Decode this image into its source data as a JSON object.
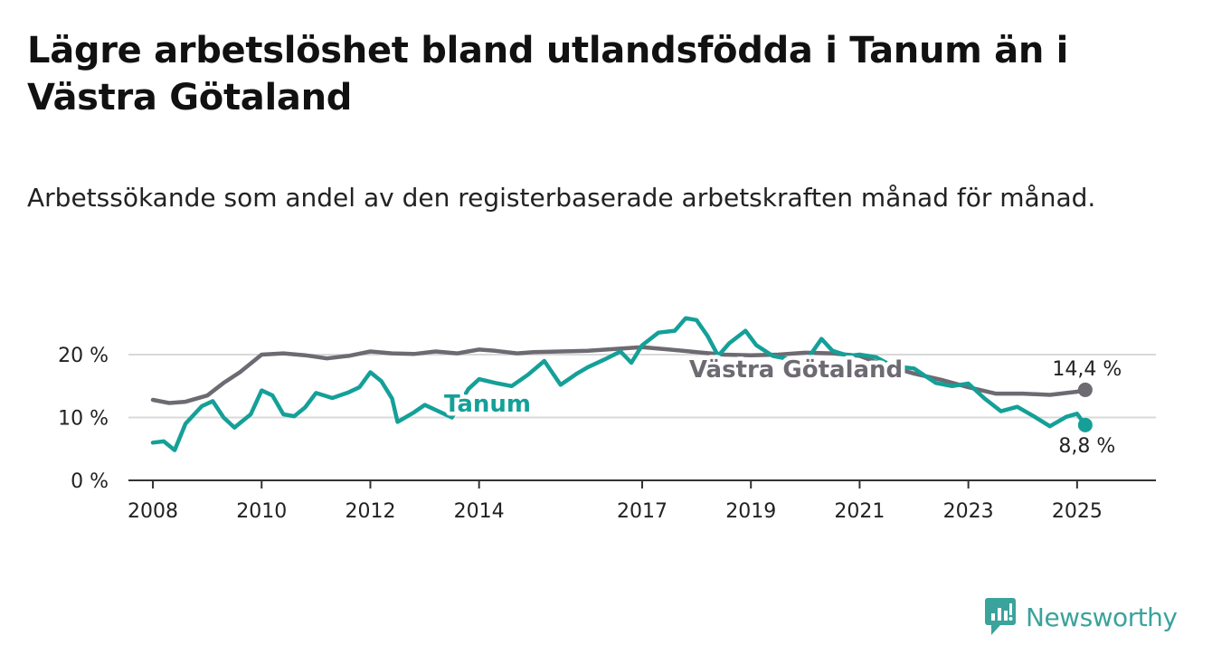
{
  "title": "Lägre arbetslöshet bland utlandsfödda i Tanum än i Västra Götaland",
  "subtitle": "Arbetssökande som andel av den registerbaserade arbetskraften månad för månad.",
  "brand": {
    "name": "Newsworthy",
    "icon": "newsworthy-logo-icon",
    "color": "#3aa39c"
  },
  "chart_data": {
    "type": "line",
    "x_ticks": [
      "2008",
      "2010",
      "2012",
      "2014",
      "2017",
      "2019",
      "2021",
      "2023",
      "2025"
    ],
    "y_ticks": [
      "0 %",
      "10 %",
      "20 %"
    ],
    "ylim": [
      0,
      20
    ],
    "grid": true,
    "series": [
      {
        "name": "Västra Götaland",
        "color": "#6e6a72",
        "end_label": "14,4 %",
        "points": [
          [
            2008.0,
            12.8
          ],
          [
            2008.3,
            12.3
          ],
          [
            2008.6,
            12.5
          ],
          [
            2009.0,
            13.5
          ],
          [
            2009.3,
            15.5
          ],
          [
            2009.6,
            17.2
          ],
          [
            2010.0,
            20.0
          ],
          [
            2010.4,
            20.2
          ],
          [
            2010.8,
            19.9
          ],
          [
            2011.2,
            19.4
          ],
          [
            2011.6,
            19.8
          ],
          [
            2012.0,
            20.5
          ],
          [
            2012.4,
            20.2
          ],
          [
            2012.8,
            20.1
          ],
          [
            2013.2,
            20.5
          ],
          [
            2013.6,
            20.2
          ],
          [
            2014.0,
            20.8
          ],
          [
            2014.3,
            20.6
          ],
          [
            2014.7,
            20.2
          ],
          [
            2015.0,
            20.4
          ],
          [
            2015.5,
            20.5
          ],
          [
            2016.0,
            20.6
          ],
          [
            2016.5,
            20.9
          ],
          [
            2017.0,
            21.2
          ],
          [
            2017.5,
            20.8
          ],
          [
            2018.0,
            20.4
          ],
          [
            2018.5,
            20.0
          ],
          [
            2019.0,
            19.9
          ],
          [
            2019.5,
            20.0
          ],
          [
            2020.0,
            20.3
          ],
          [
            2020.5,
            20.2
          ],
          [
            2021.0,
            19.8
          ],
          [
            2021.5,
            18.2
          ],
          [
            2022.0,
            17.0
          ],
          [
            2022.5,
            16.0
          ],
          [
            2023.0,
            14.8
          ],
          [
            2023.5,
            13.8
          ],
          [
            2024.0,
            13.8
          ],
          [
            2024.5,
            13.6
          ],
          [
            2025.0,
            14.1
          ],
          [
            2025.15,
            14.4
          ]
        ]
      },
      {
        "name": "Tanum",
        "color": "#14a098",
        "end_label": "8,8 %",
        "points": [
          [
            2008.0,
            6.0
          ],
          [
            2008.2,
            6.2
          ],
          [
            2008.4,
            4.8
          ],
          [
            2008.6,
            9.0
          ],
          [
            2008.9,
            11.8
          ],
          [
            2009.1,
            12.6
          ],
          [
            2009.3,
            10.0
          ],
          [
            2009.5,
            8.4
          ],
          [
            2009.8,
            10.5
          ],
          [
            2010.0,
            14.3
          ],
          [
            2010.2,
            13.5
          ],
          [
            2010.4,
            10.5
          ],
          [
            2010.6,
            10.2
          ],
          [
            2010.8,
            11.6
          ],
          [
            2011.0,
            13.9
          ],
          [
            2011.3,
            13.1
          ],
          [
            2011.6,
            14.0
          ],
          [
            2011.8,
            14.8
          ],
          [
            2012.0,
            17.2
          ],
          [
            2012.2,
            15.8
          ],
          [
            2012.4,
            13.0
          ],
          [
            2012.5,
            9.3
          ],
          [
            2012.8,
            10.8
          ],
          [
            2013.0,
            12.0
          ],
          [
            2013.5,
            10.0
          ],
          [
            2013.8,
            14.5
          ],
          [
            2014.0,
            16.1
          ],
          [
            2014.3,
            15.5
          ],
          [
            2014.6,
            15.0
          ],
          [
            2014.9,
            16.8
          ],
          [
            2015.2,
            19.0
          ],
          [
            2015.5,
            15.2
          ],
          [
            2015.8,
            17.0
          ],
          [
            2016.0,
            18.0
          ],
          [
            2016.3,
            19.2
          ],
          [
            2016.6,
            20.5
          ],
          [
            2016.8,
            18.7
          ],
          [
            2017.0,
            21.5
          ],
          [
            2017.3,
            23.5
          ],
          [
            2017.6,
            23.8
          ],
          [
            2017.8,
            25.8
          ],
          [
            2018.0,
            25.5
          ],
          [
            2018.2,
            23.0
          ],
          [
            2018.4,
            19.8
          ],
          [
            2018.6,
            21.8
          ],
          [
            2018.9,
            23.8
          ],
          [
            2019.1,
            21.5
          ],
          [
            2019.4,
            19.8
          ],
          [
            2019.7,
            19.3
          ],
          [
            2020.0,
            18.8
          ],
          [
            2020.3,
            22.5
          ],
          [
            2020.5,
            20.6
          ],
          [
            2020.8,
            19.8
          ],
          [
            2021.0,
            20.0
          ],
          [
            2021.3,
            19.6
          ],
          [
            2021.6,
            18.2
          ],
          [
            2022.0,
            17.8
          ],
          [
            2022.4,
            15.5
          ],
          [
            2022.7,
            15.0
          ],
          [
            2023.0,
            15.4
          ],
          [
            2023.3,
            13.0
          ],
          [
            2023.6,
            11.0
          ],
          [
            2023.9,
            11.7
          ],
          [
            2024.2,
            10.2
          ],
          [
            2024.5,
            8.6
          ],
          [
            2024.8,
            10.1
          ],
          [
            2025.0,
            10.6
          ],
          [
            2025.15,
            8.8
          ]
        ]
      }
    ]
  }
}
